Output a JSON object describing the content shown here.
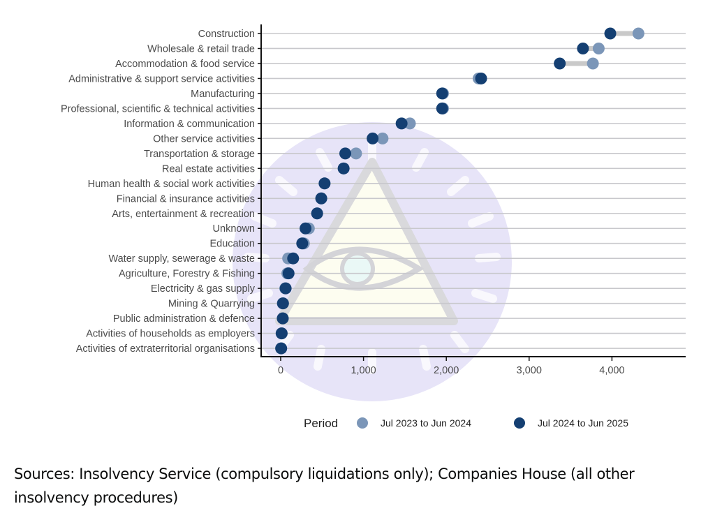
{
  "chart_data": {
    "type": "dumbbell",
    "title": "",
    "xlabel": "",
    "ylabel": "",
    "xlim": [
      -250,
      4890
    ],
    "x_ticks": [
      0,
      1000,
      2000,
      3000,
      4000
    ],
    "x_tick_labels": [
      "0",
      "1,000",
      "2,000",
      "3,000",
      "4,000"
    ],
    "grid": "horizontal",
    "legend": {
      "title": "Period",
      "position": "bottom",
      "entries": [
        {
          "name": "Jul 2023 to Jun 2024",
          "color": "#7b96b8"
        },
        {
          "name": "Jul 2024 to Jun 2025",
          "color": "#143f72"
        }
      ]
    },
    "categories": [
      "Construction",
      "Wholesale & retail trade",
      "Accommodation & food service",
      "Administrative & support service activities",
      "Manufacturing",
      "Professional, scientific & technical activities",
      "Information & communication",
      "Other service activities",
      "Transportation & storage",
      "Real estate activities",
      "Human health & social work activities",
      "Financial & insurance activities",
      "Arts, entertainment & recreation",
      "Unknown",
      "Education",
      "Water supply, sewerage & waste",
      "Agriculture, Forestry & Fishing",
      "Electricity & gas supply",
      "Mining & Quarrying",
      "Public administration & defence",
      "Activities of households as employers",
      "Activities of extraterritorial organisations"
    ],
    "series": [
      {
        "name": "Jul 2023 to Jun 2024",
        "color": "#7b96b8",
        "values": [
          4320,
          3840,
          3770,
          2390,
          1960,
          1960,
          1560,
          1230,
          910,
          760,
          530,
          490,
          440,
          340,
          280,
          90,
          80,
          55,
          25,
          25,
          10,
          5
        ]
      },
      {
        "name": "Jul 2024 to Jun 2025",
        "color": "#143f72",
        "values": [
          3980,
          3650,
          3370,
          2420,
          1950,
          1950,
          1460,
          1110,
          780,
          760,
          530,
          490,
          440,
          300,
          260,
          150,
          95,
          60,
          28,
          25,
          12,
          6
        ]
      }
    ]
  },
  "source_note": "Sources: Insolvency Service (compulsory liquidations only); Companies House (all other insolvency procedures)"
}
